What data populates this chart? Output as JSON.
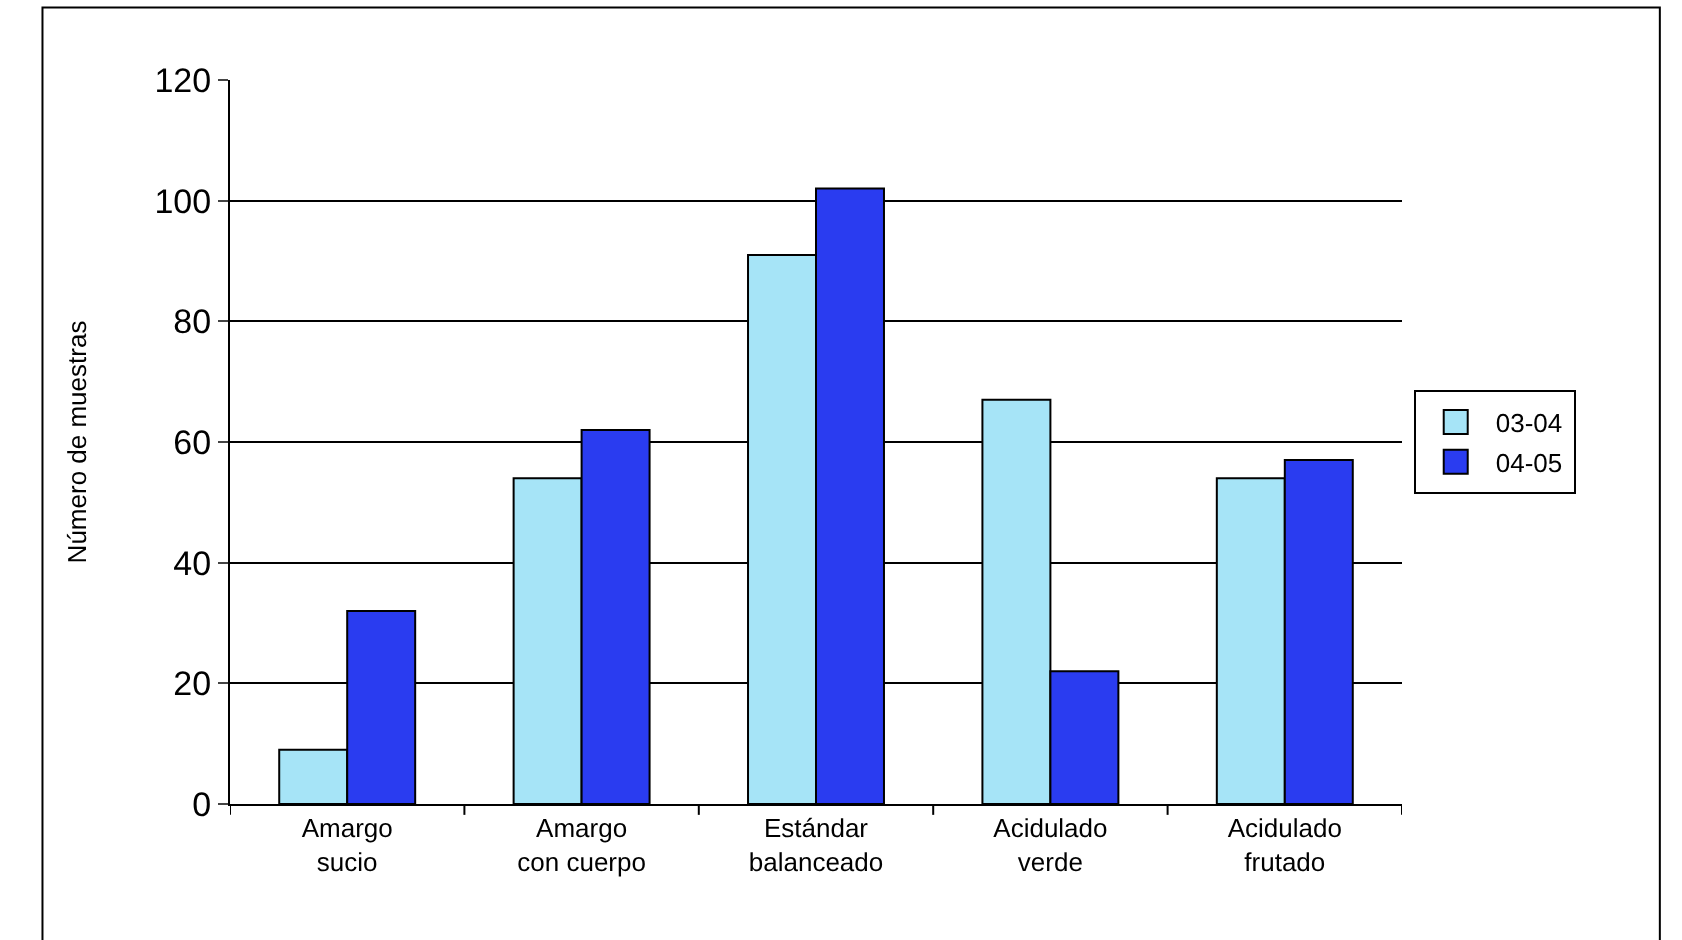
{
  "chart_data": {
    "type": "bar",
    "ylabel": "Número de muestras",
    "categories": [
      "Amargo\nsucio",
      "Amargo\ncon cuerpo",
      "Estándar\nbalanceado",
      "Acidulado\nverde",
      "Acidulado\nfrutado"
    ],
    "series": [
      {
        "name": "03-04",
        "color": "#a6e4f7",
        "values": [
          9,
          54,
          91,
          67,
          54
        ]
      },
      {
        "name": "04-05",
        "color": "#2a3cf0",
        "values": [
          32,
          62,
          102,
          22,
          57
        ]
      }
    ],
    "ylim": [
      0,
      120
    ],
    "yticks": [
      0,
      20,
      40,
      60,
      80,
      100,
      120
    ],
    "grid": "y",
    "legend": "right"
  }
}
